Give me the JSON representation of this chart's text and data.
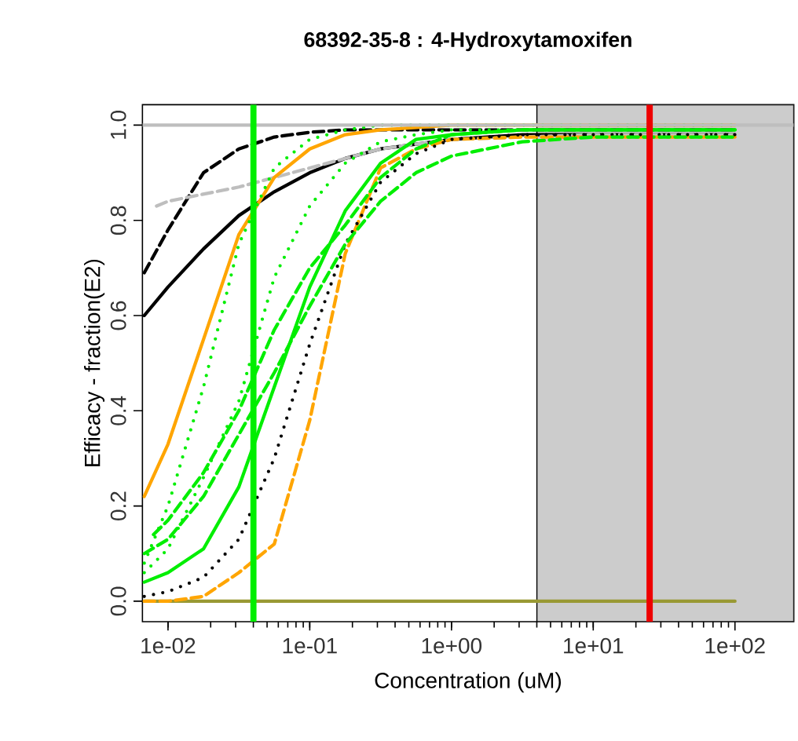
{
  "chart_data": {
    "type": "line",
    "title": "68392-35-8 : 4-Hydroxytamoxifen",
    "xlabel": "Concentration (uM)",
    "ylabel": "Efficacy - fraction(E2)",
    "log": "x",
    "xlim": [
      0.0066,
      260
    ],
    "ylim": [
      -0.043,
      1.043
    ],
    "xticks": [
      {
        "value": 0.01,
        "label": "1e-02"
      },
      {
        "value": 0.1,
        "label": "1e-01"
      },
      {
        "value": 1,
        "label": "1e+00"
      },
      {
        "value": 10,
        "label": "1e+01"
      },
      {
        "value": 100,
        "label": "1e+02"
      }
    ],
    "yticks": [
      {
        "value": 0,
        "label": "0.0"
      },
      {
        "value": 0.2,
        "label": "0.2"
      },
      {
        "value": 0.4,
        "label": "0.4"
      },
      {
        "value": 0.6,
        "label": "0.6"
      },
      {
        "value": 0.8,
        "label": "0.8"
      },
      {
        "value": 1,
        "label": "1.0"
      }
    ],
    "bands": [
      {
        "axis": "x",
        "from": 4,
        "to": 260,
        "color": "#cccccc"
      }
    ],
    "ref_lines": [
      {
        "axis": "y",
        "value": 1,
        "color": "#bebebe"
      },
      {
        "axis": "x",
        "value": 0.04,
        "color": "#00ee00"
      },
      {
        "axis": "x",
        "value": 25,
        "color": "#ee0000"
      }
    ],
    "series": [
      {
        "color": "#999933",
        "line_style": "solid",
        "x": [
          0.0068,
          100
        ],
        "values": [
          0,
          0
        ]
      },
      {
        "color": "#000000",
        "line_style": "solid",
        "x": [
          0.0068,
          0.01,
          0.0178,
          0.0316,
          0.0562,
          0.1,
          0.178,
          0.316,
          0.562,
          1,
          3.16,
          10,
          100
        ],
        "values": [
          0.6,
          0.66,
          0.74,
          0.81,
          0.86,
          0.9,
          0.93,
          0.95,
          0.96,
          0.97,
          0.98,
          0.98,
          0.98
        ]
      },
      {
        "color": "#000000",
        "line_style": "dashed",
        "x": [
          0.0068,
          0.01,
          0.0178,
          0.0316,
          0.0562,
          0.1,
          0.178,
          0.316,
          0.562,
          1,
          3.16,
          10,
          100
        ],
        "values": [
          0.69,
          0.78,
          0.9,
          0.95,
          0.975,
          0.985,
          0.99,
          0.99,
          0.99,
          0.99,
          0.99,
          0.99,
          0.99
        ]
      },
      {
        "color": "#bebebe",
        "line_style": "dashed",
        "x": [
          0.0083,
          0.01,
          0.0316,
          0.1,
          0.316,
          1,
          10,
          100
        ],
        "values": [
          0.83,
          0.84,
          0.87,
          0.91,
          0.95,
          0.97,
          0.98,
          0.98
        ]
      },
      {
        "color": "#ffa500",
        "line_style": "solid",
        "x": [
          0.0068,
          0.01,
          0.0178,
          0.0316,
          0.0562,
          0.1,
          0.178,
          0.316,
          1,
          100
        ],
        "values": [
          0.22,
          0.33,
          0.55,
          0.77,
          0.89,
          0.95,
          0.98,
          0.99,
          1.0,
          1.0
        ]
      },
      {
        "color": "#ffa500",
        "line_style": "dashed",
        "x": [
          0.0068,
          0.01,
          0.0178,
          0.0316,
          0.0562,
          0.1,
          0.178,
          0.316,
          0.562,
          1,
          3.16,
          10,
          100
        ],
        "values": [
          0.0,
          0.0,
          0.01,
          0.06,
          0.12,
          0.38,
          0.73,
          0.91,
          0.95,
          0.97,
          0.975,
          0.975,
          0.975
        ]
      },
      {
        "color": "#000000",
        "line_style": "dotted",
        "x": [
          0.0068,
          0.01,
          0.0178,
          0.0316,
          0.0562,
          0.1,
          0.178,
          0.316,
          0.562,
          1,
          3.16,
          10,
          100
        ],
        "values": [
          0.01,
          0.02,
          0.05,
          0.13,
          0.3,
          0.54,
          0.75,
          0.88,
          0.94,
          0.97,
          0.98,
          0.98,
          0.98
        ]
      },
      {
        "color": "#00ee00",
        "line_style": "dotted",
        "x": [
          0.0068,
          0.01,
          0.0178,
          0.0316,
          0.0562,
          0.1,
          0.178,
          0.316,
          1,
          100
        ],
        "values": [
          0.08,
          0.2,
          0.45,
          0.75,
          0.91,
          0.97,
          0.99,
          1.0,
          1.0,
          1.0
        ]
      },
      {
        "color": "#00ee00",
        "line_style": "dotted",
        "x": [
          0.0068,
          0.01,
          0.0178,
          0.0316,
          0.0562,
          0.1,
          0.178,
          0.316,
          0.562,
          1,
          100
        ],
        "values": [
          0.06,
          0.11,
          0.26,
          0.42,
          0.68,
          0.83,
          0.92,
          0.965,
          0.98,
          0.99,
          0.99
        ]
      },
      {
        "color": "#00ee00",
        "line_style": "dashed",
        "x": [
          0.0079,
          0.01,
          0.0178,
          0.0316,
          0.0562,
          0.1,
          0.178,
          0.316,
          0.562,
          1,
          3.16,
          10,
          100
        ],
        "values": [
          0.14,
          0.17,
          0.27,
          0.4,
          0.57,
          0.7,
          0.79,
          0.89,
          0.95,
          0.98,
          0.99,
          0.99,
          0.99
        ]
      },
      {
        "color": "#00ee00",
        "line_style": "dashed",
        "x": [
          0.0068,
          0.01,
          0.0178,
          0.0316,
          0.0562,
          0.1,
          0.178,
          0.316,
          0.562,
          1,
          3.16,
          10,
          100
        ],
        "values": [
          0.1,
          0.13,
          0.22,
          0.35,
          0.48,
          0.62,
          0.75,
          0.84,
          0.9,
          0.935,
          0.965,
          0.975,
          0.975
        ]
      },
      {
        "color": "#00ee00",
        "line_style": "solid",
        "x": [
          0.0068,
          0.01,
          0.0178,
          0.0316,
          0.0562,
          0.1,
          0.178,
          0.316,
          0.562,
          1,
          3.16,
          10,
          100
        ],
        "values": [
          0.04,
          0.06,
          0.11,
          0.24,
          0.45,
          0.66,
          0.82,
          0.92,
          0.97,
          0.98,
          0.99,
          0.99,
          0.99
        ]
      }
    ]
  }
}
